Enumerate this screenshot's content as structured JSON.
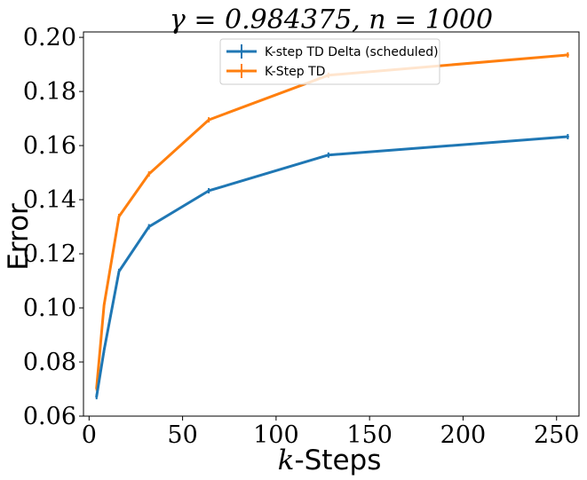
{
  "chart_data": {
    "type": "line",
    "title": "γ = 0.984375, n = 1000",
    "xlabel": "k-Steps",
    "ylabel": "Error",
    "xlim": [
      -3,
      262
    ],
    "ylim": [
      0.06,
      0.202
    ],
    "xticks": [
      0,
      50,
      100,
      150,
      200,
      250
    ],
    "xtick_labels": [
      "0",
      "50",
      "100",
      "150",
      "200",
      "250"
    ],
    "yticks": [
      0.06,
      0.08,
      0.1,
      0.12,
      0.14,
      0.16,
      0.18,
      0.2
    ],
    "ytick_labels": [
      "0.06",
      "0.08",
      "0.10",
      "0.12",
      "0.14",
      "0.16",
      "0.18",
      "0.20"
    ],
    "grid": false,
    "legend_position": "top-center",
    "series": [
      {
        "name": "K-step TD Delta (scheduled)",
        "color": "#1f77b4",
        "x": [
          4,
          8,
          16,
          32,
          64,
          128,
          256
        ],
        "y": [
          0.0672,
          0.0843,
          0.1135,
          0.13,
          0.1433,
          0.1565,
          0.1633
        ]
      },
      {
        "name": "K-Step TD",
        "color": "#ff7f0e",
        "x": [
          4,
          8,
          16,
          32,
          64,
          128,
          256
        ],
        "y": [
          0.0703,
          0.101,
          0.1338,
          0.1495,
          0.1695,
          0.186,
          0.1935
        ]
      }
    ]
  }
}
